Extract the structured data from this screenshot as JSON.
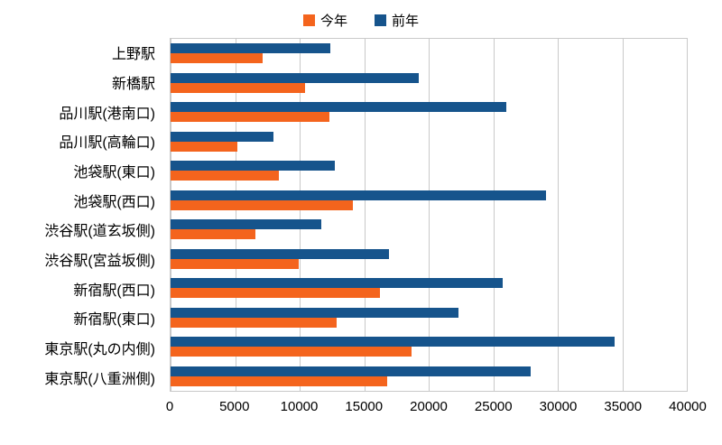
{
  "chart_data": {
    "type": "bar",
    "orientation": "horizontal",
    "title": "",
    "xlabel": "",
    "ylabel": "",
    "xlim": [
      0,
      40000
    ],
    "xticks": [
      0,
      5000,
      10000,
      15000,
      20000,
      25000,
      30000,
      35000,
      40000
    ],
    "grid": true,
    "legend_position": "top",
    "categories": [
      "上野駅",
      "新橋駅",
      "品川駅(港南口)",
      "品川駅(高輪口)",
      "池袋駅(東口)",
      "池袋駅(西口)",
      "渋谷駅(道玄坂側)",
      "渋谷駅(宮益坂側)",
      "新宿駅(西口)",
      "新宿駅(東口)",
      "東京駅(丸の内側)",
      "東京駅(八重洲側)"
    ],
    "series": [
      {
        "name": "今年",
        "color": "#f4641d",
        "values": [
          7100,
          10400,
          12300,
          5200,
          8400,
          14100,
          6600,
          9900,
          16200,
          12900,
          18700,
          16800
        ]
      },
      {
        "name": "前年",
        "color": "#16548c",
        "values": [
          12400,
          19200,
          26000,
          8000,
          12700,
          29100,
          11700,
          16900,
          25700,
          22300,
          34400,
          27900
        ]
      }
    ],
    "colors": {
      "gridline": "#c9c9c9",
      "background": "#ffffff",
      "text": "#000000"
    }
  }
}
